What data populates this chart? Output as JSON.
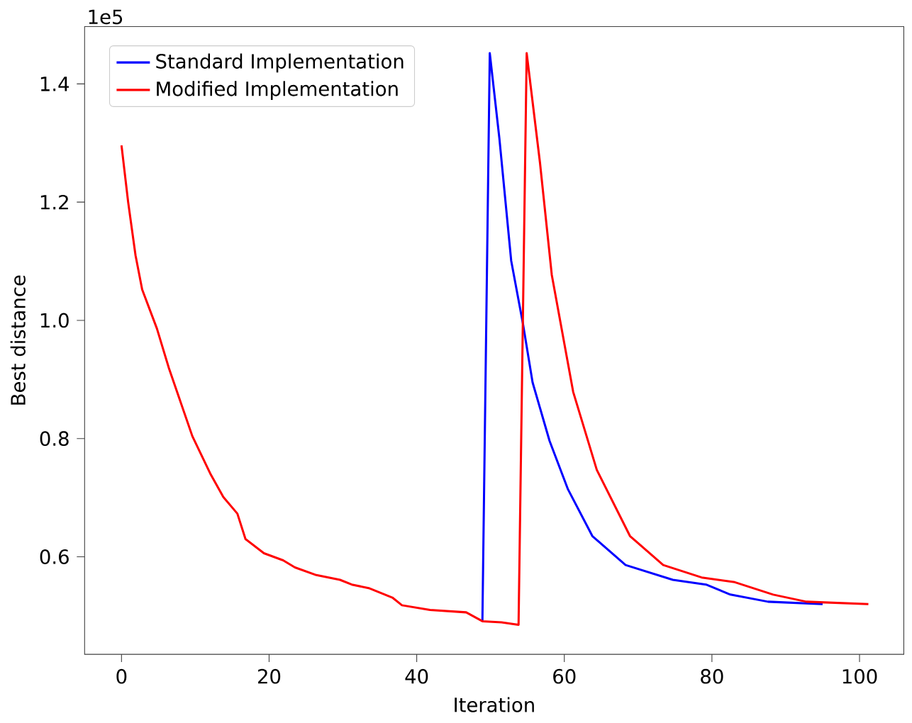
{
  "chart_data": {
    "type": "line",
    "xlabel": "Iteration",
    "ylabel": "Best distance",
    "annotations": [
      "1e5"
    ],
    "xlim": [
      -5,
      106
    ],
    "ylim": [
      0.435,
      1.497
    ],
    "xticks": [
      0,
      20,
      40,
      60,
      80,
      100
    ],
    "yticks": [
      {
        "value": 0.6,
        "label": "0.6"
      },
      {
        "value": 0.8,
        "label": "0.8"
      },
      {
        "value": 1.0,
        "label": "1.0"
      },
      {
        "value": 1.2,
        "label": "1.2"
      },
      {
        "value": 1.4,
        "label": "1.4"
      }
    ],
    "legend": "top left",
    "grid": false,
    "series": [
      {
        "name": "Standard Implementation",
        "color": "#0000ff",
        "x": [
          48.9,
          49.9,
          51.2,
          52.8,
          54.4,
          55.7,
          58.0,
          60.5,
          63.8,
          68.3,
          74.7,
          79.2,
          82.5,
          87.6,
          95.0
        ],
        "values": [
          0.491,
          1.452,
          1.308,
          1.101,
          0.994,
          0.895,
          0.796,
          0.714,
          0.635,
          0.586,
          0.561,
          0.553,
          0.536,
          0.524,
          0.52
        ]
      },
      {
        "name": "Modified Implementation",
        "color": "#ff0000",
        "x": [
          0,
          0.9,
          1.9,
          2.8,
          4.8,
          6.4,
          9.6,
          12.1,
          13.8,
          15.7,
          16.8,
          19.3,
          21.9,
          23.5,
          26.4,
          29.6,
          31.2,
          33.5,
          36.7,
          38.0,
          41.8,
          46.7,
          48.9,
          51.5,
          53.8,
          54.9,
          56.7,
          58.3,
          61.2,
          64.4,
          68.9,
          73.4,
          78.6,
          83.1,
          88.3,
          92.8,
          101.2
        ],
        "values": [
          1.296,
          1.2,
          1.11,
          1.052,
          0.986,
          0.92,
          0.804,
          0.739,
          0.701,
          0.673,
          0.63,
          0.606,
          0.594,
          0.582,
          0.569,
          0.561,
          0.553,
          0.547,
          0.531,
          0.518,
          0.51,
          0.506,
          0.491,
          0.489,
          0.485,
          1.452,
          1.267,
          1.077,
          0.879,
          0.747,
          0.635,
          0.586,
          0.565,
          0.557,
          0.536,
          0.524,
          0.52
        ]
      }
    ]
  }
}
